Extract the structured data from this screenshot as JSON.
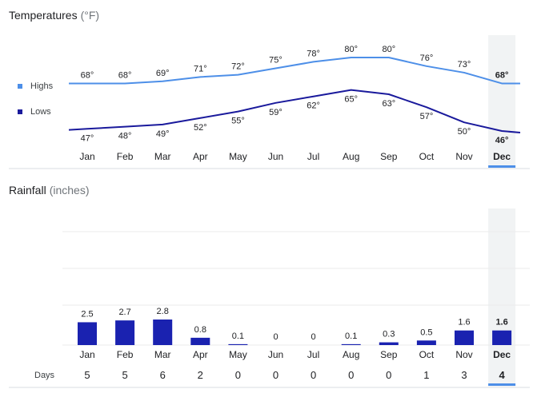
{
  "temperature_title": "Temperatures",
  "temperature_unit": "(°F)",
  "rainfall_title": "Rainfall",
  "rainfall_unit": "(inches)",
  "days_label": "Days",
  "selected_month": "Dec",
  "colors": {
    "highs": "#4d8fe8",
    "lows": "#1a1a9c",
    "bars": "#1a22b0",
    "highlight": "#f1f3f4",
    "selected_underline": "#4d8fe8",
    "grid": "#ebebeb",
    "axis": "#dadce0"
  },
  "chart_data": [
    {
      "type": "line",
      "title": "Temperatures (°F)",
      "categories": [
        "Jan",
        "Feb",
        "Mar",
        "Apr",
        "May",
        "Jun",
        "Jul",
        "Aug",
        "Sep",
        "Oct",
        "Nov",
        "Dec"
      ],
      "series": [
        {
          "name": "Highs",
          "values": [
            68,
            68,
            69,
            71,
            72,
            75,
            78,
            80,
            80,
            76,
            73,
            68
          ],
          "labels": [
            "68°",
            "68°",
            "69°",
            "71°",
            "72°",
            "75°",
            "78°",
            "80°",
            "80°",
            "76°",
            "73°",
            "68°"
          ]
        },
        {
          "name": "Lows",
          "values": [
            47,
            48,
            49,
            52,
            55,
            59,
            62,
            65,
            63,
            57,
            50,
            46
          ],
          "labels": [
            "47°",
            "48°",
            "49°",
            "52°",
            "55°",
            "59°",
            "62°",
            "65°",
            "63°",
            "57°",
            "50°",
            "46°"
          ]
        }
      ],
      "legend": [
        "Highs",
        "Lows"
      ]
    },
    {
      "type": "bar",
      "title": "Rainfall (inches)",
      "categories": [
        "Jan",
        "Feb",
        "Mar",
        "Apr",
        "May",
        "Jun",
        "Jul",
        "Aug",
        "Sep",
        "Oct",
        "Nov",
        "Dec"
      ],
      "values": [
        2.5,
        2.7,
        2.8,
        0.8,
        0.1,
        0,
        0,
        0.1,
        0.3,
        0.5,
        1.6,
        1.6
      ],
      "labels": [
        "2.5",
        "2.7",
        "2.8",
        "0.8",
        "0.1",
        "0",
        "0",
        "0.1",
        "0.3",
        "0.5",
        "1.6",
        "1.6"
      ],
      "days": [
        5,
        5,
        6,
        2,
        0,
        0,
        0,
        0,
        0,
        1,
        3,
        4
      ],
      "days_labels": [
        "5",
        "5",
        "6",
        "2",
        "0",
        "0",
        "0",
        "0",
        "0",
        "1",
        "3",
        "4"
      ]
    }
  ]
}
